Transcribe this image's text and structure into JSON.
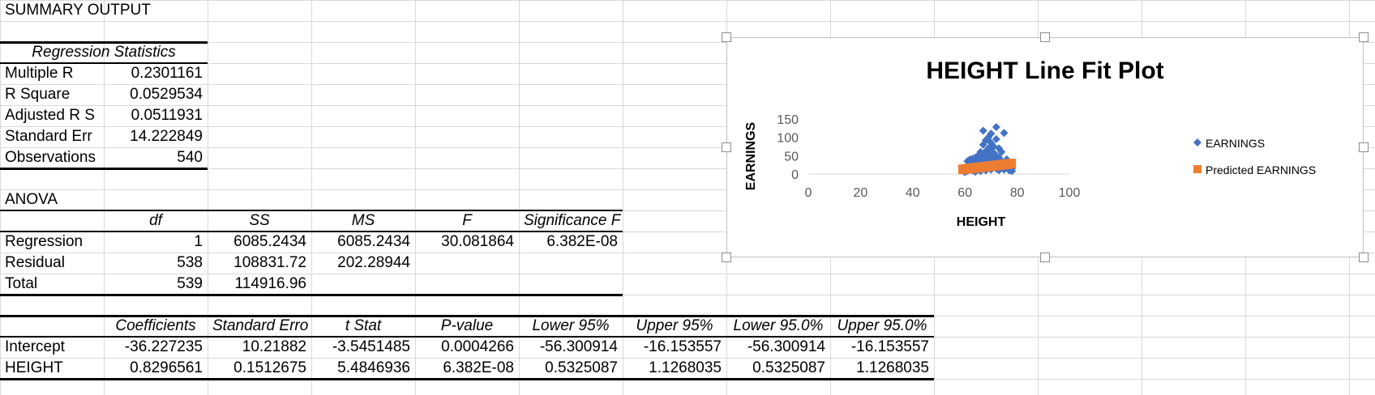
{
  "summary": {
    "title": "SUMMARY OUTPUT",
    "reg_stats_header": "Regression Statistics",
    "reg_stats": [
      {
        "label": "Multiple R",
        "value": "0.2301161"
      },
      {
        "label": "R Square",
        "value": "0.0529534"
      },
      {
        "label": "Adjusted R S",
        "value": "0.0511931"
      },
      {
        "label": "Standard Err",
        "value": "14.222849"
      },
      {
        "label": "Observations",
        "value": "540"
      }
    ]
  },
  "anova": {
    "title": "ANOVA",
    "headers": [
      "df",
      "SS",
      "MS",
      "F",
      "Significance F"
    ],
    "rows": [
      {
        "label": "Regression",
        "df": "1",
        "ss": "6085.2434",
        "ms": "6085.2434",
        "f": "30.081864",
        "sig": "6.382E-08"
      },
      {
        "label": "Residual",
        "df": "538",
        "ss": "108831.72",
        "ms": "202.28944",
        "f": "",
        "sig": ""
      },
      {
        "label": "Total",
        "df": "539",
        "ss": "114916.96",
        "ms": "",
        "f": "",
        "sig": ""
      }
    ]
  },
  "coef": {
    "headers": [
      "Coefficients",
      "Standard Erro",
      "t Stat",
      "P-value",
      "Lower 95%",
      "Upper 95%",
      "Lower 95.0%",
      "Upper 95.0%"
    ],
    "rows": [
      {
        "label": "Intercept",
        "values": [
          "-36.227235",
          "10.21882",
          "-3.5451485",
          "0.0004266",
          "-56.300914",
          "-16.153557",
          "-56.300914",
          "-16.153557"
        ]
      },
      {
        "label": "HEIGHT",
        "values": [
          "0.8296561",
          "0.1512675",
          "5.4846936",
          "6.382E-08",
          "0.5325087",
          "1.1268035",
          "0.5325087",
          "1.1268035"
        ]
      }
    ]
  },
  "chart_data": {
    "type": "scatter",
    "title": "HEIGHT Line Fit  Plot",
    "xlabel": "HEIGHT",
    "ylabel": "EARNINGS",
    "xlim": [
      0,
      100
    ],
    "ylim": [
      0,
      150
    ],
    "x_ticks": [
      "0",
      "20",
      "40",
      "60",
      "80",
      "100"
    ],
    "y_ticks": [
      "0",
      "50",
      "100",
      "150"
    ],
    "legend_position": "right",
    "series": [
      {
        "name": "EARNINGS",
        "color": "#4472C4",
        "marker": "diamond",
        "points": [
          [
            60,
            12
          ],
          [
            60,
            5
          ],
          [
            61,
            20
          ],
          [
            61,
            8
          ],
          [
            61,
            35
          ],
          [
            62,
            15
          ],
          [
            62,
            25
          ],
          [
            62,
            40
          ],
          [
            63,
            10
          ],
          [
            63,
            18
          ],
          [
            63,
            30
          ],
          [
            63,
            42
          ],
          [
            64,
            6
          ],
          [
            64,
            22
          ],
          [
            64,
            35
          ],
          [
            64,
            45
          ],
          [
            65,
            12
          ],
          [
            65,
            28
          ],
          [
            65,
            38
          ],
          [
            65,
            50
          ],
          [
            66,
            8
          ],
          [
            66,
            20
          ],
          [
            66,
            32
          ],
          [
            66,
            44
          ],
          [
            66,
            60
          ],
          [
            67,
            15
          ],
          [
            67,
            25
          ],
          [
            67,
            40
          ],
          [
            67,
            55
          ],
          [
            67,
            80
          ],
          [
            67,
            118
          ],
          [
            68,
            10
          ],
          [
            68,
            30
          ],
          [
            68,
            48
          ],
          [
            68,
            62
          ],
          [
            68,
            92
          ],
          [
            69,
            18
          ],
          [
            69,
            35
          ],
          [
            69,
            52
          ],
          [
            69,
            70
          ],
          [
            69,
            100
          ],
          [
            70,
            12
          ],
          [
            70,
            28
          ],
          [
            70,
            45
          ],
          [
            70,
            65
          ],
          [
            70,
            85
          ],
          [
            70,
            110
          ],
          [
            71,
            20
          ],
          [
            71,
            38
          ],
          [
            71,
            58
          ],
          [
            71,
            75
          ],
          [
            72,
            15
          ],
          [
            72,
            32
          ],
          [
            72,
            50
          ],
          [
            72,
            95
          ],
          [
            72,
            128
          ],
          [
            73,
            10
          ],
          [
            73,
            28
          ],
          [
            73,
            45
          ],
          [
            73,
            70
          ],
          [
            74,
            18
          ],
          [
            74,
            35
          ],
          [
            74,
            60
          ],
          [
            75,
            12
          ],
          [
            75,
            30
          ],
          [
            75,
            112
          ],
          [
            76,
            20
          ],
          [
            76,
            40
          ],
          [
            77,
            10
          ],
          [
            77,
            25
          ],
          [
            78,
            15
          ],
          [
            78,
            8
          ]
        ]
      },
      {
        "name": "Predicted EARNINGS",
        "color": "#ED7D31",
        "marker": "square",
        "line": {
          "x_from": 59,
          "x_to": 78,
          "y_from": 12.72,
          "y_to": 28.48
        }
      }
    ]
  }
}
